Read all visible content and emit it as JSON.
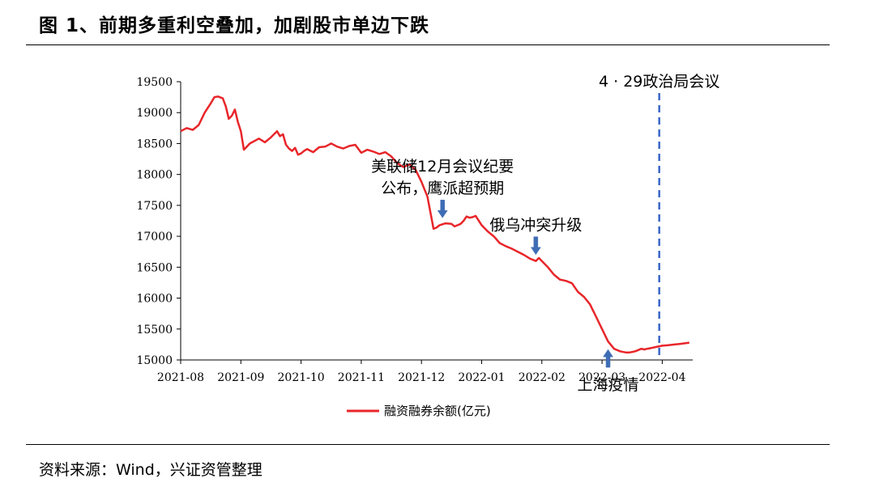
{
  "figure": {
    "title": "图 1、前期多重利空叠加，加剧股市单边下跌",
    "source": "资料来源：Wind，兴证资管整理"
  },
  "colors": {
    "series": "#e8262a",
    "arrow": "#3f6db5",
    "event_line": "#3a67c8",
    "axis": "#000000"
  },
  "chart_data": {
    "type": "line",
    "title": "",
    "xlabel": "",
    "ylabel": "",
    "ylim": [
      15000,
      19500
    ],
    "yticks": [
      15000,
      15500,
      16000,
      16500,
      17000,
      17500,
      18000,
      18500,
      19000,
      19500
    ],
    "xticks": [
      "2021-08",
      "2021-09",
      "2021-10",
      "2021-11",
      "2021-12",
      "2022-01",
      "2022-02",
      "2022-03",
      "2022-04"
    ],
    "grid": false,
    "legend": "bottom-center",
    "series": [
      {
        "name": "融资融券余额(亿元)",
        "x": [
          0,
          0.1,
          0.2,
          0.3,
          0.4,
          0.5,
          0.56,
          0.62,
          0.7,
          0.75,
          0.8,
          0.85,
          0.9,
          0.95,
          1.0,
          1.05,
          1.15,
          1.3,
          1.4,
          1.5,
          1.6,
          1.65,
          1.7,
          1.75,
          1.8,
          1.85,
          1.9,
          1.95,
          2.0,
          2.05,
          2.1,
          2.2,
          2.3,
          2.4,
          2.5,
          2.6,
          2.7,
          2.8,
          2.9,
          3.0,
          3.1,
          3.2,
          3.3,
          3.4,
          3.5,
          3.6,
          3.7,
          3.8,
          3.9,
          4.0,
          4.1,
          4.2,
          4.25,
          4.3,
          4.4,
          4.5,
          4.55,
          4.6,
          4.65,
          4.7,
          4.75,
          4.8,
          4.85,
          4.9,
          5.0,
          5.1,
          5.2,
          5.3,
          5.4,
          5.5,
          5.6,
          5.7,
          5.8,
          5.9,
          5.95,
          6.0,
          6.1,
          6.2,
          6.3,
          6.4,
          6.5,
          6.6,
          6.7,
          6.8,
          6.9,
          7.0,
          7.1,
          7.2,
          7.3,
          7.4,
          7.45,
          7.5,
          7.55,
          7.6,
          7.65,
          7.7,
          7.75,
          7.8,
          7.85,
          7.9,
          8.0,
          8.1,
          8.2,
          8.3,
          8.45
        ],
        "values": [
          18700,
          18750,
          18720,
          18800,
          19000,
          19150,
          19250,
          19260,
          19230,
          19100,
          18900,
          18950,
          19050,
          18850,
          18700,
          18400,
          18500,
          18580,
          18520,
          18600,
          18700,
          18620,
          18650,
          18480,
          18420,
          18380,
          18430,
          18320,
          18340,
          18380,
          18410,
          18360,
          18440,
          18450,
          18500,
          18450,
          18420,
          18460,
          18480,
          18350,
          18400,
          18370,
          18330,
          18360,
          18290,
          18180,
          18120,
          18160,
          18080,
          17880,
          17640,
          17120,
          17140,
          17180,
          17210,
          17200,
          17160,
          17180,
          17200,
          17250,
          17320,
          17300,
          17310,
          17330,
          17180,
          17080,
          17000,
          16890,
          16840,
          16800,
          16750,
          16700,
          16640,
          16600,
          16650,
          16600,
          16500,
          16380,
          16300,
          16280,
          16240,
          16100,
          16020,
          15900,
          15700,
          15500,
          15300,
          15180,
          15140,
          15120,
          15120,
          15130,
          15140,
          15160,
          15180,
          15170,
          15180,
          15190,
          15200,
          15210,
          15230,
          15240,
          15250,
          15260,
          15280
        ]
      }
    ],
    "annotations": [
      {
        "text": [
          "美联储12月会议纪要",
          "公布，鹰派超预期"
        ],
        "x": 4.35,
        "arrow": "down"
      },
      {
        "text": [
          "俄乌冲突升级"
        ],
        "x": 5.9,
        "arrow": "down"
      },
      {
        "text": [
          "上海疫情"
        ],
        "x": 7.1,
        "arrow": "up"
      },
      {
        "text": [
          "4 · 29政治局会议"
        ],
        "x": 7.95,
        "arrow": "none",
        "event_line": true
      }
    ]
  }
}
